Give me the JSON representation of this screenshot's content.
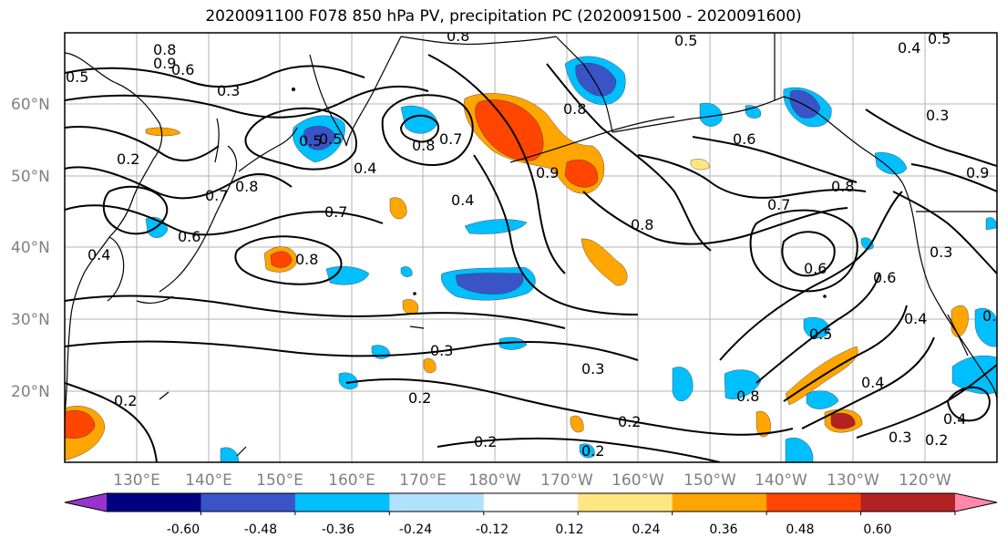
{
  "title": "2020091100 F078 850 hPa PV, precipitation PC (2020091500 - 2020091600)",
  "lat_ticks": [
    "60°N",
    "50°N",
    "40°N",
    "30°N",
    "20°N"
  ],
  "lon_ticks": [
    "130°E",
    "140°E",
    "150°E",
    "160°E",
    "170°E",
    "180°W",
    "170°W",
    "160°W",
    "150°W",
    "140°W",
    "130°W",
    "120°W"
  ],
  "colorbar": {
    "ticks": [
      "-0.60",
      "-0.48",
      "-0.36",
      "-0.24",
      "-0.12",
      "0.12",
      "0.24",
      "0.36",
      "0.48",
      "0.60"
    ],
    "colors": [
      "#9933cc",
      "#000080",
      "#3a54c8",
      "#00bfff",
      "#b0e2ff",
      "#ffffff",
      "#ffe680",
      "#ffa500",
      "#ff4500",
      "#b22222",
      "#ff88aa"
    ]
  },
  "contour_labels": [
    "0.8",
    "0.9",
    "0.6",
    "0.5",
    "0.3",
    "0.2",
    "0.4",
    "0.5",
    "0.8",
    "0.7",
    "0.4",
    "0.8",
    "0.7",
    "0.9",
    "0.8",
    "0.5",
    "0.6",
    "0.4",
    "0.5",
    "0.3",
    "0.4",
    "0.8",
    "0.6",
    "0.7",
    "0.8",
    "0.6",
    "0.9",
    "0.6",
    "0.5",
    "0.4",
    "0.3",
    "0.3",
    "0.3",
    "0.2",
    "0.2",
    "0.2",
    "0.2",
    "0.2",
    "0.4",
    "0.2",
    "0.3",
    "0.2",
    "0.8",
    "0.4",
    "0.8",
    "0.8",
    "0.7",
    "0.5"
  ]
}
